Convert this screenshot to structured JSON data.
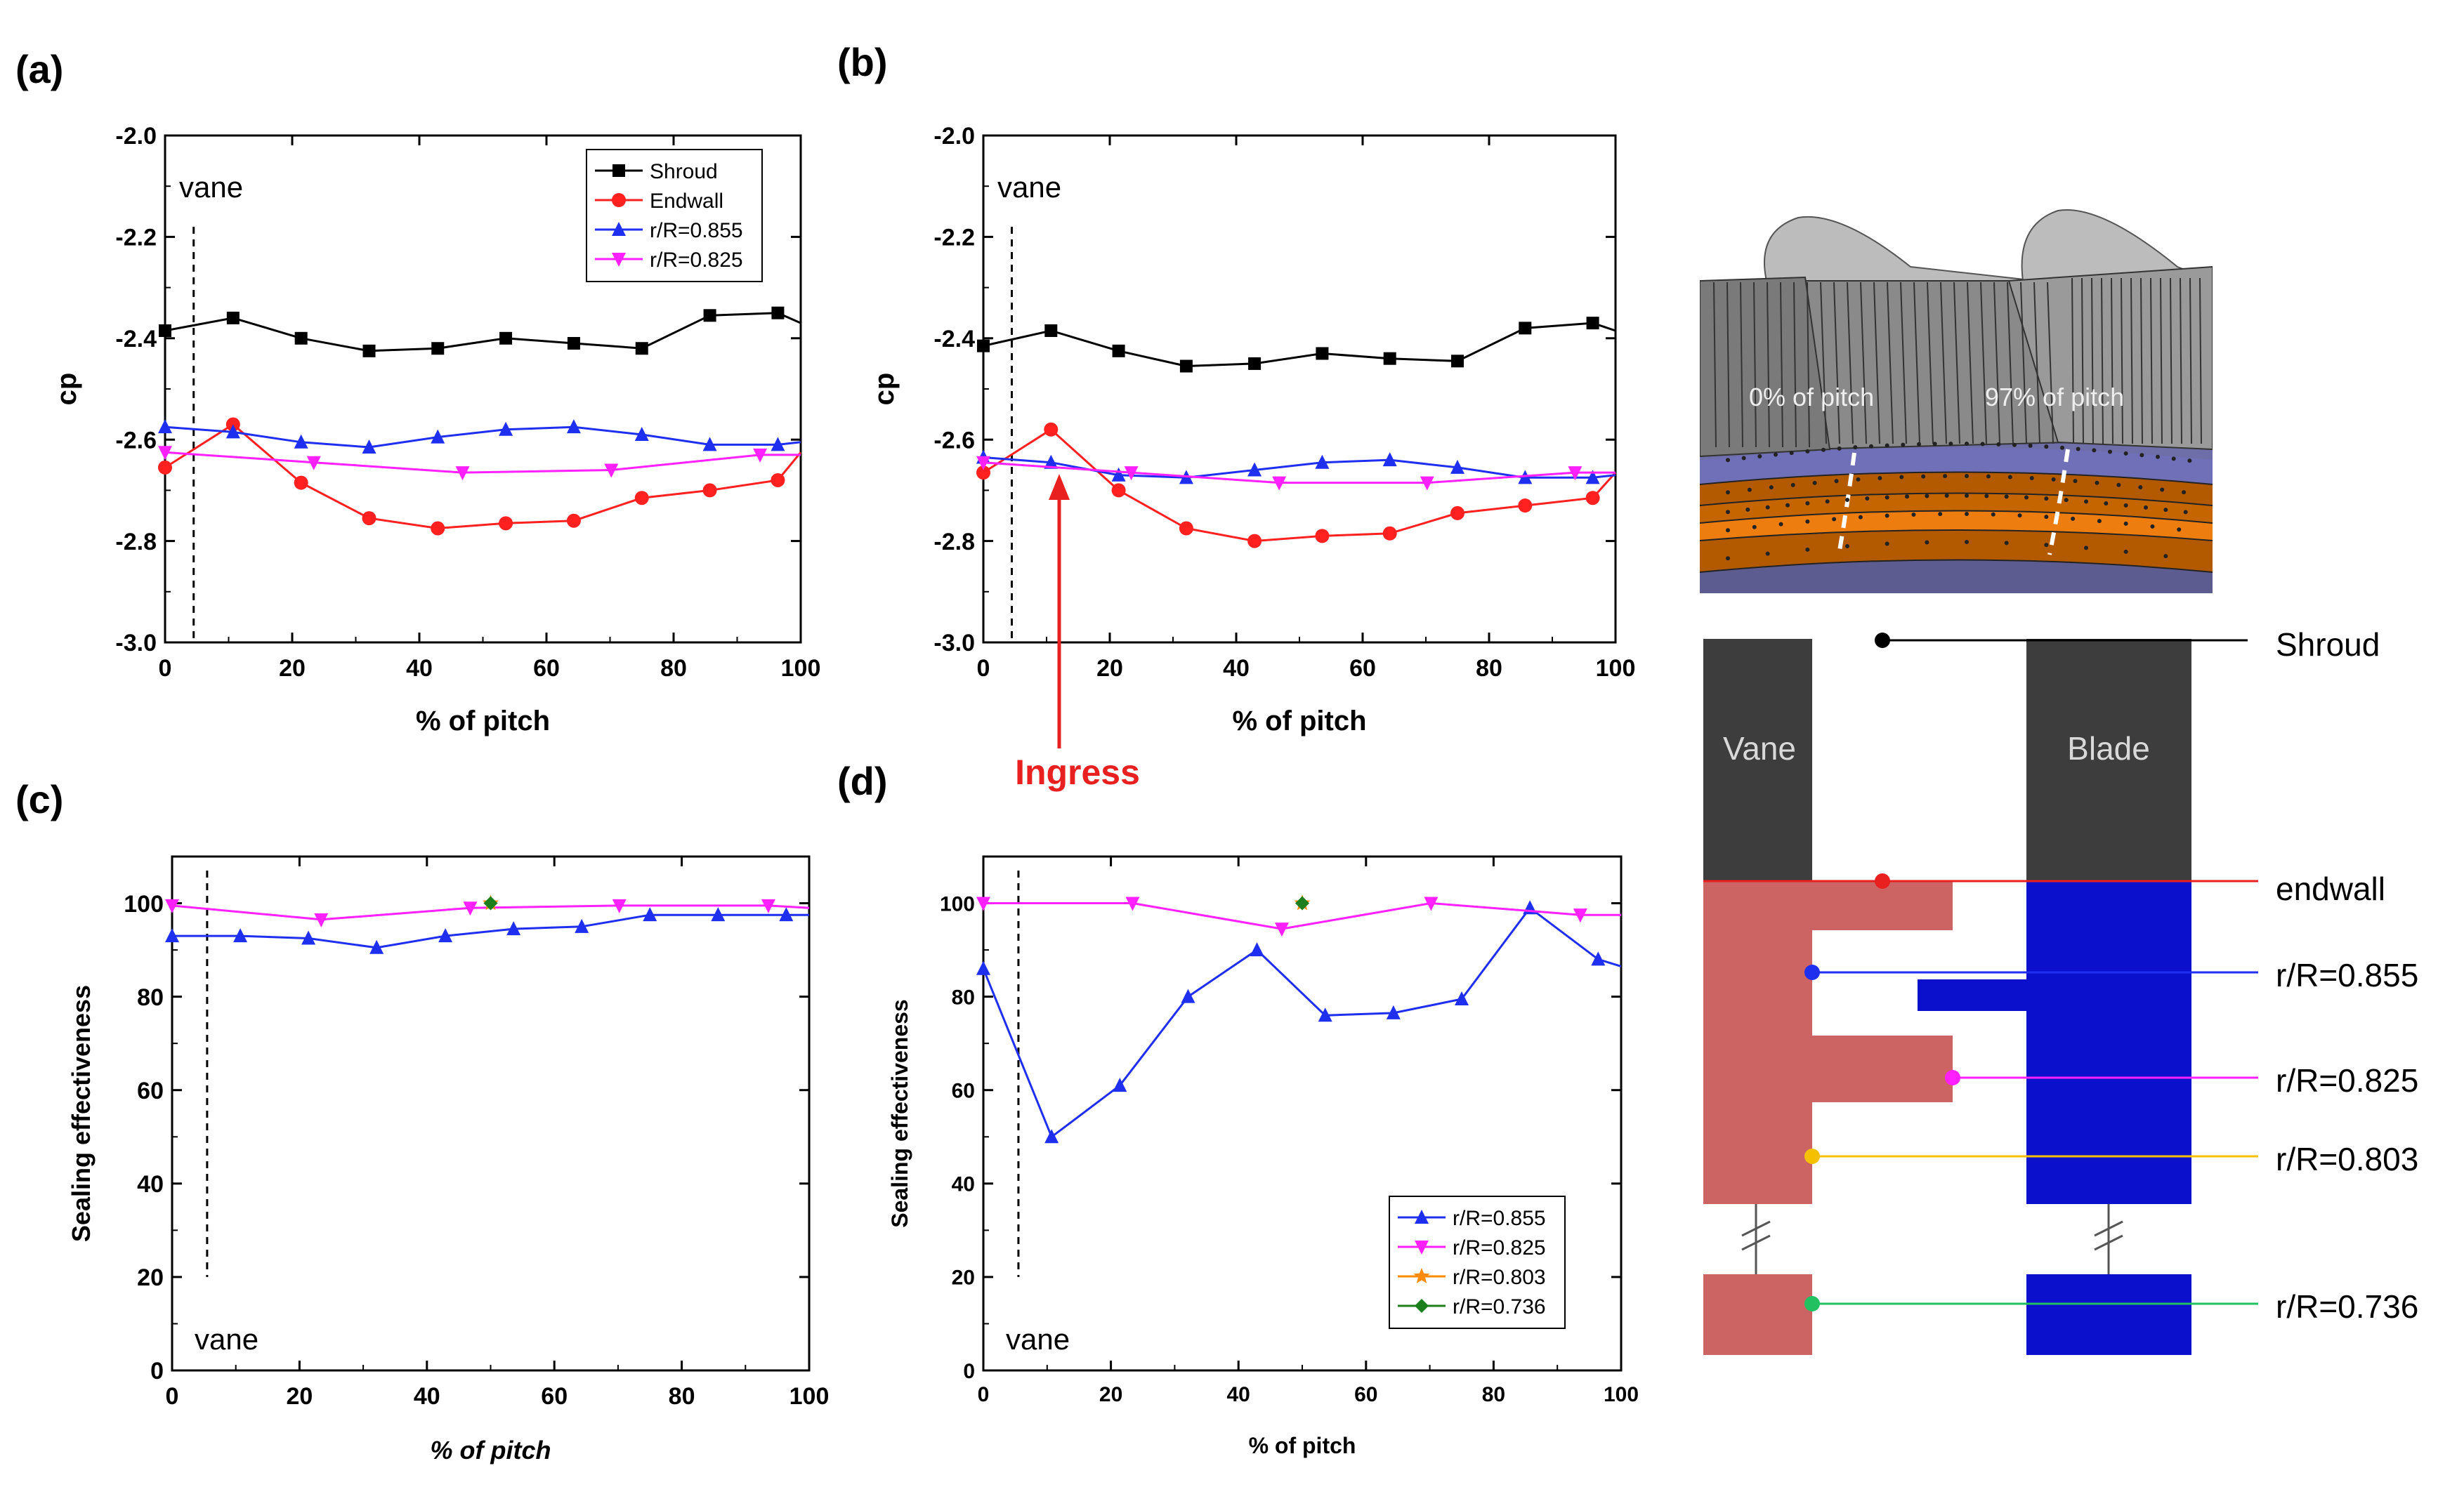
{
  "figure": {
    "panel_letters": [
      "(a)",
      "(b)",
      "(c)",
      "(d)"
    ],
    "ingress_label": "Ingress",
    "ingress_color": "#e8201f"
  },
  "chart_data": [
    {
      "id": "a",
      "type": "line",
      "xlabel": "% of pitch",
      "ylabel": "cp",
      "xlim": [
        0,
        100
      ],
      "ylim": [
        -3.0,
        -2.0
      ],
      "xticks": [
        0,
        20,
        40,
        60,
        80,
        100
      ],
      "yticks": [
        -3.0,
        -2.8,
        -2.6,
        -2.4,
        -2.2,
        -2.0
      ],
      "ytick_labels": [
        "-3.0",
        "-2.8",
        "-2.6",
        "-2.4",
        "-2.2",
        "-2.0"
      ],
      "vane": {
        "x": 4.5,
        "label": "vane",
        "label_pos": "top"
      },
      "legend": "top-right",
      "series": [
        {
          "name": "Shroud",
          "color": "#000000",
          "marker": "square",
          "x": [
            0,
            10.7,
            21.4,
            32.1,
            42.9,
            53.6,
            64.3,
            75,
            85.7,
            96.4,
            100
          ],
          "y": [
            -2.385,
            -2.36,
            -2.4,
            -2.425,
            -2.42,
            -2.4,
            -2.41,
            -2.42,
            -2.355,
            -2.35,
            -2.37
          ],
          "marked": 10
        },
        {
          "name": "Endwall",
          "color": "#ff2020",
          "marker": "circle",
          "x": [
            0,
            10.7,
            21.4,
            32.1,
            42.9,
            53.6,
            64.3,
            75,
            85.7,
            96.4,
            100
          ],
          "y": [
            -2.655,
            -2.57,
            -2.685,
            -2.755,
            -2.775,
            -2.765,
            -2.76,
            -2.715,
            -2.7,
            -2.68,
            -2.625
          ],
          "marked": 10
        },
        {
          "name": "r/R=0.855",
          "color": "#1f2ff0",
          "marker": "triangle-up",
          "x": [
            0,
            10.7,
            21.4,
            32.1,
            42.9,
            53.6,
            64.3,
            75,
            85.7,
            96.4,
            100
          ],
          "y": [
            -2.575,
            -2.585,
            -2.605,
            -2.615,
            -2.595,
            -2.58,
            -2.575,
            -2.59,
            -2.61,
            -2.61,
            -2.605
          ],
          "marked": 10
        },
        {
          "name": "r/R=0.825",
          "color": "#ff20ff",
          "marker": "triangle-down",
          "x": [
            0,
            23.4,
            46.8,
            70.2,
            93.6,
            100
          ],
          "y": [
            -2.625,
            -2.645,
            -2.665,
            -2.66,
            -2.63,
            -2.63
          ],
          "marked": 5
        }
      ]
    },
    {
      "id": "b",
      "type": "line",
      "xlabel": "% of pitch",
      "ylabel": "cp",
      "xlim": [
        0,
        100
      ],
      "ylim": [
        -3.0,
        -2.0
      ],
      "xticks": [
        0,
        20,
        40,
        60,
        80,
        100
      ],
      "yticks": [
        -3.0,
        -2.8,
        -2.6,
        -2.4,
        -2.2,
        -2.0
      ],
      "ytick_labels": [
        "-3.0",
        "-2.8",
        "-2.6",
        "-2.4",
        "-2.2",
        "-2.0"
      ],
      "vane": {
        "x": 4.5,
        "label": "vane",
        "label_pos": "top"
      },
      "legend": "none",
      "ingress_x": 11,
      "series": [
        {
          "name": "Shroud",
          "color": "#000000",
          "marker": "square",
          "x": [
            0,
            10.7,
            21.4,
            32.1,
            42.9,
            53.6,
            64.3,
            75,
            85.7,
            96.4,
            100
          ],
          "y": [
            -2.415,
            -2.385,
            -2.425,
            -2.455,
            -2.45,
            -2.43,
            -2.44,
            -2.445,
            -2.38,
            -2.37,
            -2.385
          ],
          "marked": 10
        },
        {
          "name": "Endwall",
          "color": "#ff2020",
          "marker": "circle",
          "x": [
            0,
            10.7,
            21.4,
            32.1,
            42.9,
            53.6,
            64.3,
            75,
            85.7,
            96.4,
            100
          ],
          "y": [
            -2.665,
            -2.58,
            -2.7,
            -2.775,
            -2.8,
            -2.79,
            -2.785,
            -2.745,
            -2.73,
            -2.715,
            -2.665
          ],
          "marked": 10
        },
        {
          "name": "r/R=0.855",
          "color": "#1f2ff0",
          "marker": "triangle-up",
          "x": [
            0,
            10.7,
            21.4,
            32.1,
            42.9,
            53.6,
            64.3,
            75,
            85.7,
            96.4,
            100
          ],
          "y": [
            -2.635,
            -2.645,
            -2.67,
            -2.675,
            -2.66,
            -2.645,
            -2.64,
            -2.655,
            -2.675,
            -2.675,
            -2.67
          ],
          "marked": 10
        },
        {
          "name": "r/R=0.825",
          "color": "#ff20ff",
          "marker": "triangle-down",
          "x": [
            0,
            23.4,
            46.8,
            70.2,
            93.6,
            100
          ],
          "y": [
            -2.645,
            -2.665,
            -2.685,
            -2.685,
            -2.665,
            -2.665
          ],
          "marked": 5
        }
      ]
    },
    {
      "id": "c",
      "type": "line",
      "xlabel": "% of pitch",
      "ylabel": "Sealing effectiveness",
      "xlim": [
        0,
        100
      ],
      "ylim": [
        0,
        110
      ],
      "xticks": [
        0,
        20,
        40,
        60,
        80,
        100
      ],
      "yticks": [
        0,
        20,
        40,
        60,
        80,
        100
      ],
      "ytick_labels": [
        "0",
        "20",
        "40",
        "60",
        "80",
        "100"
      ],
      "vane": {
        "x": 5.5,
        "label": "vane",
        "label_pos": "bottom"
      },
      "legend": "none",
      "series": [
        {
          "name": "r/R=0.855",
          "color": "#1f2ff0",
          "marker": "triangle-up",
          "x": [
            0,
            10.7,
            21.4,
            32.1,
            42.9,
            53.6,
            64.3,
            75,
            85.7,
            96.4,
            100
          ],
          "y": [
            93,
            93,
            92.5,
            90.5,
            93,
            94.5,
            95,
            97.5,
            97.5,
            97.5,
            97.5
          ],
          "marked": 10
        },
        {
          "name": "r/R=0.825",
          "color": "#ff20ff",
          "marker": "triangle-down",
          "x": [
            0,
            23.4,
            46.8,
            70.2,
            93.6,
            100
          ],
          "y": [
            99.5,
            96.5,
            99,
            99.5,
            99.5,
            99
          ],
          "marked": 5
        },
        {
          "name": "r/R=0.803",
          "color": "#ff8c00",
          "marker": "star",
          "x": [
            50
          ],
          "y": [
            100
          ],
          "marked": 1
        },
        {
          "name": "r/R=0.736",
          "color": "#1c7f1c",
          "marker": "diamond",
          "x": [
            50
          ],
          "y": [
            100
          ],
          "marked": 1
        }
      ]
    },
    {
      "id": "d",
      "type": "line",
      "xlabel": "% of pitch",
      "ylabel": "Sealing effectiveness",
      "xlim": [
        0,
        100
      ],
      "ylim": [
        0,
        110
      ],
      "xticks": [
        0,
        20,
        40,
        60,
        80,
        100
      ],
      "yticks": [
        0,
        20,
        40,
        60,
        80,
        100
      ],
      "ytick_labels": [
        "0",
        "20",
        "40",
        "60",
        "80",
        "100"
      ],
      "vane": {
        "x": 5.5,
        "label": "vane",
        "label_pos": "bottom"
      },
      "legend": "bottom-right",
      "series": [
        {
          "name": "r/R=0.855",
          "color": "#1f2ff0",
          "marker": "triangle-up",
          "x": [
            0,
            10.7,
            21.4,
            32.1,
            42.9,
            53.6,
            64.3,
            75,
            85.7,
            96.4,
            100
          ],
          "y": [
            86,
            50,
            61,
            80,
            90,
            76,
            76.5,
            79.5,
            99,
            88,
            86.5
          ],
          "marked": 10
        },
        {
          "name": "r/R=0.825",
          "color": "#ff20ff",
          "marker": "triangle-down",
          "x": [
            0,
            23.4,
            46.8,
            70.2,
            93.6,
            100
          ],
          "y": [
            100,
            100,
            94.5,
            100,
            97.5,
            97.5
          ],
          "marked": 5
        },
        {
          "name": "r/R=0.803",
          "color": "#ff8c00",
          "marker": "star",
          "x": [
            50
          ],
          "y": [
            100
          ],
          "marked": 1
        },
        {
          "name": "r/R=0.736",
          "color": "#1c7f1c",
          "marker": "diamond",
          "x": [
            50
          ],
          "y": [
            100
          ],
          "marked": 1
        }
      ]
    }
  ],
  "render_3d": {
    "label_0": "0% of pitch",
    "label_97": "97% of pitch"
  },
  "schematic": {
    "vane_label": "Vane",
    "blade_label": "Blade",
    "stations": [
      {
        "name": "shroud",
        "label": "Shroud",
        "color": "#000000"
      },
      {
        "name": "endwall",
        "label": "endwall",
        "color": "#e8201f"
      },
      {
        "name": "r855",
        "label": "r/R=0.855",
        "color": "#1f2ff0"
      },
      {
        "name": "r825",
        "label": "r/R=0.825",
        "color": "#ff20ff"
      },
      {
        "name": "r803",
        "label": "r/R=0.803",
        "color": "#f5c000"
      },
      {
        "name": "r736",
        "label": "r/R=0.736",
        "color": "#22c060"
      }
    ],
    "stator_color": "#cd6464",
    "rotor_color": "#0a10cc",
    "airfoil_color": "#3d3d3d"
  }
}
